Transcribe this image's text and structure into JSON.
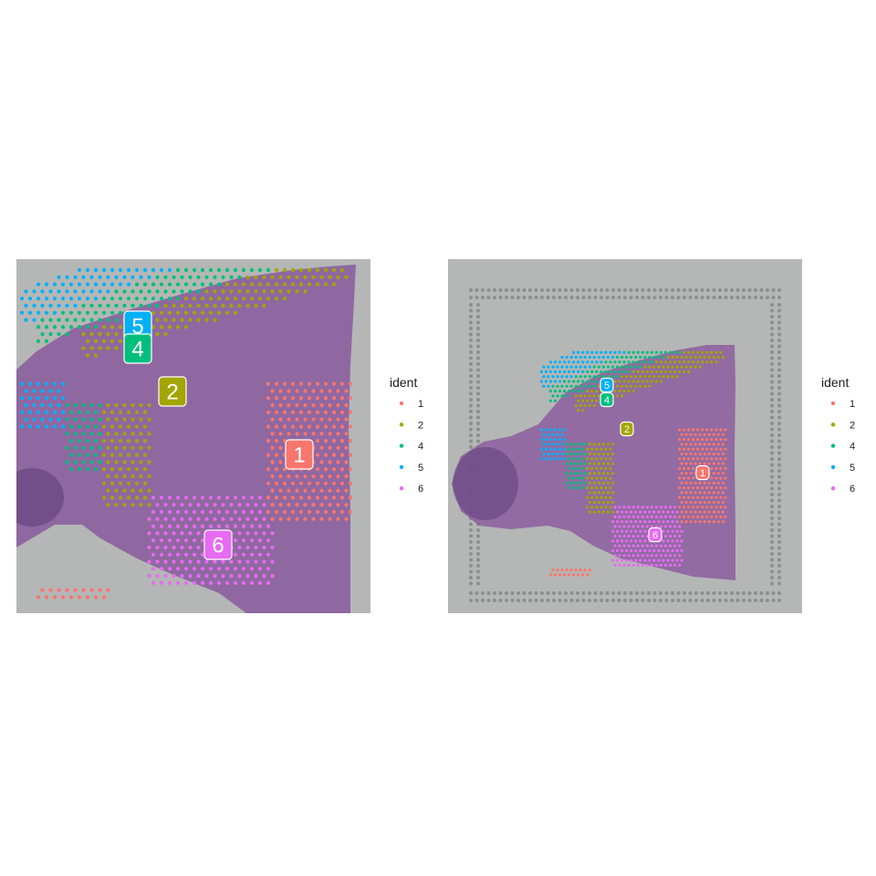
{
  "chart_data": [
    {
      "type": "scatter",
      "description_free": true,
      "legend": {
        "title": "ident",
        "position": "right",
        "entries": [
          "1",
          "2",
          "4",
          "5",
          "6"
        ]
      },
      "clusters": [
        {
          "id": "1",
          "color": "#F8766D"
        },
        {
          "id": "2",
          "color": "#A3A500"
        },
        {
          "id": "4",
          "color": "#00BF7D"
        },
        {
          "id": "5",
          "color": "#00B0F6"
        },
        {
          "id": "6",
          "color": "#E76BF3"
        }
      ],
      "cluster_labels": [
        "5",
        "4",
        "2",
        "1",
        "6"
      ],
      "grid": false,
      "axes_shown": false
    },
    {
      "type": "scatter",
      "legend": {
        "title": "ident",
        "position": "right",
        "entries": [
          "1",
          "2",
          "4",
          "5",
          "6"
        ]
      },
      "clusters": [
        {
          "id": "1",
          "color": "#F8766D"
        },
        {
          "id": "2",
          "color": "#A3A500"
        },
        {
          "id": "4",
          "color": "#00BF7D"
        },
        {
          "id": "5",
          "color": "#00B0F6"
        },
        {
          "id": "6",
          "color": "#E76BF3"
        }
      ],
      "cluster_labels": [
        "5",
        "4",
        "2",
        "1",
        "6"
      ],
      "grid": false,
      "axes_shown": false
    }
  ],
  "colors": {
    "tissue": "#8a5a9e",
    "background_slide": "#b4b7b5",
    "fiducial": "#8c8f8e"
  }
}
